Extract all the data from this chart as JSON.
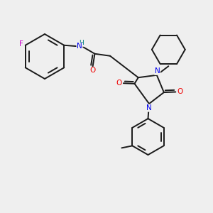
{
  "background_color": "#efefef",
  "bond_color": "#1a1a1a",
  "bond_width": 1.4,
  "atom_colors": {
    "N": "#0000ee",
    "O": "#ee0000",
    "F": "#cc00cc",
    "H": "#008080",
    "C": "#1a1a1a"
  },
  "figsize": [
    3.0,
    3.0
  ],
  "dpi": 100,
  "xlim": [
    0,
    10
  ],
  "ylim": [
    0,
    10
  ],
  "font_size": 7.5
}
